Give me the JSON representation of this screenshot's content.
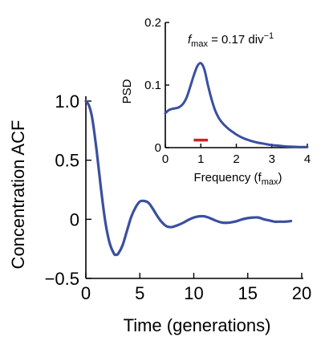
{
  "chart_data": [
    {
      "id": "main",
      "type": "line",
      "xlabel": "Time (generations)",
      "ylabel": "Concentration ACF",
      "xlim": [
        0,
        20
      ],
      "ylim": [
        -0.5,
        1.0
      ],
      "xticks": [
        0,
        5,
        10,
        15,
        20
      ],
      "xtick_labels": [
        "0",
        "5",
        "10",
        "15",
        "20"
      ],
      "yticks": [
        1.0,
        0.5,
        0,
        -0.5
      ],
      "ytick_labels": [
        "1.0",
        "0.5",
        "0",
        "−0.5"
      ],
      "grid": false,
      "line_color": "#3a4fa0",
      "series": [
        {
          "x": [
            0,
            0.3,
            0.6,
            1.0,
            1.4,
            1.8,
            2.2,
            2.6,
            2.8,
            3.0,
            3.4,
            3.8,
            4.2,
            4.6,
            5.0,
            5.4,
            5.8,
            6.2,
            6.6,
            7.0,
            7.5,
            8.0,
            8.5,
            9.0,
            9.5,
            10.0,
            10.5,
            11.0,
            11.5,
            12.0,
            12.5,
            13.0,
            13.5,
            14.0,
            14.5,
            15.0,
            15.5,
            16.0,
            16.5,
            17.0,
            17.5,
            18.0,
            18.5,
            19.0
          ],
          "y": [
            1.0,
            0.96,
            0.85,
            0.58,
            0.26,
            -0.02,
            -0.2,
            -0.29,
            -0.3,
            -0.29,
            -0.22,
            -0.1,
            0.02,
            0.1,
            0.15,
            0.155,
            0.14,
            0.09,
            0.03,
            -0.02,
            -0.06,
            -0.065,
            -0.05,
            -0.03,
            -0.005,
            0.015,
            0.025,
            0.025,
            0.01,
            -0.01,
            -0.025,
            -0.03,
            -0.025,
            -0.015,
            0.0,
            0.01,
            0.015,
            0.015,
            0.0,
            -0.01,
            -0.02,
            -0.02,
            -0.02,
            -0.015
          ]
        }
      ]
    },
    {
      "id": "inset",
      "type": "line",
      "xlabel": "Frequency (f",
      "xlabel_sub": "max",
      "xlabel_end": ")",
      "ylabel": "PSD",
      "annotation": {
        "prefix": "f",
        "sub": "max",
        "text": " = 0.17 div",
        "sup": "−1"
      },
      "xlim": [
        0,
        4
      ],
      "ylim": [
        0,
        0.2
      ],
      "xticks": [
        0,
        1,
        2,
        3,
        4
      ],
      "xtick_labels": [
        "0",
        "1",
        "2",
        "3",
        "4"
      ],
      "yticks": [
        0,
        0.1,
        0.2
      ],
      "ytick_labels": [
        "0",
        "0.1",
        "0.2"
      ],
      "line_color": "#3a4fa0",
      "marker": {
        "x": [
          0.8,
          1.2
        ],
        "y": 0.012,
        "color": "#d0202a"
      },
      "series": [
        {
          "x": [
            0,
            0.1,
            0.2,
            0.3,
            0.4,
            0.5,
            0.6,
            0.7,
            0.8,
            0.9,
            1.0,
            1.1,
            1.2,
            1.3,
            1.4,
            1.5,
            1.6,
            1.7,
            1.8,
            1.9,
            2.0,
            2.2,
            2.4,
            2.6,
            2.8,
            3.0,
            3.2,
            3.4,
            3.6,
            3.8,
            4.0
          ],
          "y": [
            0.055,
            0.06,
            0.062,
            0.063,
            0.065,
            0.07,
            0.08,
            0.097,
            0.115,
            0.13,
            0.135,
            0.125,
            0.1,
            0.078,
            0.06,
            0.048,
            0.04,
            0.034,
            0.029,
            0.025,
            0.021,
            0.015,
            0.011,
            0.008,
            0.006,
            0.004,
            0.003,
            0.002,
            0.0015,
            0.001,
            0.001
          ]
        }
      ]
    }
  ]
}
